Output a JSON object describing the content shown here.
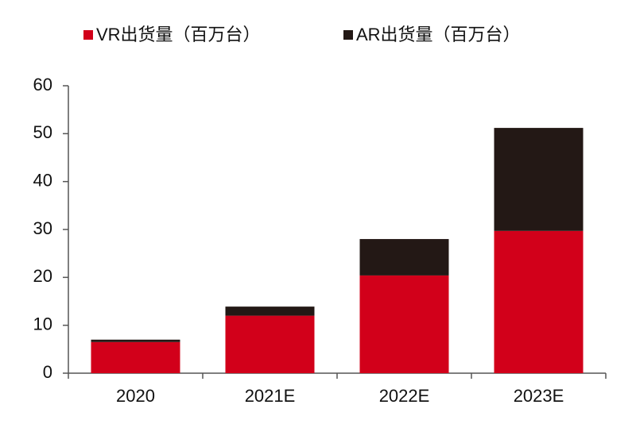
{
  "chart_data": {
    "type": "stacked_bar",
    "categories": [
      "2020",
      "2021E",
      "2022E",
      "2023E"
    ],
    "series": [
      {
        "name": "VR出货量（百万台）",
        "color": "#d2001a",
        "values": [
          6.5,
          12,
          20.4,
          29.7
        ]
      },
      {
        "name": "AR出货量（百万台）",
        "color": "#231815",
        "values": [
          0.5,
          1.9,
          7.6,
          21.5
        ]
      }
    ],
    "ylim": [
      0,
      60
    ],
    "yticks": [
      0,
      10,
      20,
      30,
      40,
      50,
      60
    ],
    "legend": "top"
  }
}
